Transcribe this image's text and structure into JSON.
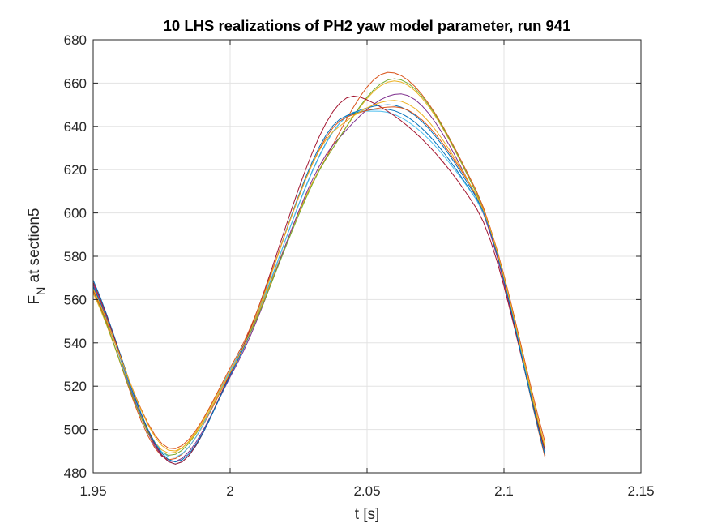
{
  "chart_data": {
    "type": "line",
    "title": "10 LHS realizations of PH2 yaw model parameter, run 941",
    "xlabel": "t [s]",
    "ylabel": {
      "main": "F",
      "subscript": "N",
      "rest": " at section5"
    },
    "xlim": [
      1.95,
      2.15
    ],
    "ylim": [
      480,
      680
    ],
    "xticks": [
      1.95,
      2.0,
      2.05,
      2.1,
      2.15
    ],
    "xtick_labels": [
      "1.95",
      "2",
      "2.05",
      "2.1",
      "2.15"
    ],
    "yticks": [
      480,
      500,
      520,
      540,
      560,
      580,
      600,
      620,
      640,
      660,
      680
    ],
    "ytick_labels": [
      "480",
      "500",
      "520",
      "540",
      "560",
      "580",
      "600",
      "620",
      "640",
      "660",
      "680"
    ],
    "grid": true,
    "x_start": 1.95,
    "x_end": 2.115,
    "series": [
      {
        "color": "#0072BD",
        "points": [
          [
            1.95,
            569
          ],
          [
            1.98,
            484
          ],
          [
            2.002,
            530
          ],
          [
            2.045,
            646
          ],
          [
            2.056,
            648
          ],
          [
            2.09,
            606
          ],
          [
            2.115,
            488
          ]
        ]
      },
      {
        "color": "#D95319",
        "points": [
          [
            1.95,
            565
          ],
          [
            1.978,
            486
          ],
          [
            2.002,
            531
          ],
          [
            2.033,
            621
          ],
          [
            2.058,
            665
          ],
          [
            2.09,
            610
          ],
          [
            2.115,
            487
          ]
        ]
      },
      {
        "color": "#EDB120",
        "points": [
          [
            1.95,
            563
          ],
          [
            1.978,
            489
          ],
          [
            2.002,
            532
          ],
          [
            2.035,
            625
          ],
          [
            2.06,
            661
          ],
          [
            2.09,
            609
          ],
          [
            2.115,
            491
          ]
        ]
      },
      {
        "color": "#7E2F8E",
        "points": [
          [
            1.95,
            567
          ],
          [
            1.979,
            485
          ],
          [
            2.002,
            529
          ],
          [
            2.038,
            632
          ],
          [
            2.062,
            655
          ],
          [
            2.09,
            607
          ],
          [
            2.115,
            489
          ]
        ]
      },
      {
        "color": "#77AC30",
        "points": [
          [
            1.95,
            564
          ],
          [
            1.978,
            488
          ],
          [
            2.002,
            531
          ],
          [
            2.036,
            627
          ],
          [
            2.06,
            662
          ],
          [
            2.09,
            609
          ],
          [
            2.115,
            490
          ]
        ]
      },
      {
        "color": "#4DBEEE",
        "points": [
          [
            1.95,
            566
          ],
          [
            1.979,
            487
          ],
          [
            2.002,
            532
          ],
          [
            2.047,
            647
          ],
          [
            2.054,
            647
          ],
          [
            2.09,
            606
          ],
          [
            2.115,
            489
          ]
        ]
      },
      {
        "color": "#A2142F",
        "points": [
          [
            1.95,
            568
          ],
          [
            1.98,
            484
          ],
          [
            2.002,
            531
          ],
          [
            2.045,
            654
          ],
          [
            2.052,
            651
          ],
          [
            2.09,
            602
          ],
          [
            2.115,
            490
          ]
        ]
      },
      {
        "color": "#0072BD",
        "points": [
          [
            1.95,
            566
          ],
          [
            1.98,
            485
          ],
          [
            2.002,
            530
          ],
          [
            2.041,
            644
          ],
          [
            2.058,
            650
          ],
          [
            2.09,
            607
          ],
          [
            2.115,
            488
          ]
        ]
      },
      {
        "color": "#D95319",
        "points": [
          [
            1.95,
            564
          ],
          [
            1.979,
            491
          ],
          [
            2.002,
            533
          ],
          [
            2.042,
            644
          ],
          [
            2.06,
            649
          ],
          [
            2.09,
            608
          ],
          [
            2.115,
            494
          ]
        ]
      },
      {
        "color": "#EDB120",
        "points": [
          [
            1.95,
            565
          ],
          [
            1.979,
            490
          ],
          [
            2.002,
            531
          ],
          [
            2.038,
            638
          ],
          [
            2.06,
            652
          ],
          [
            2.09,
            608
          ],
          [
            2.115,
            492
          ]
        ]
      }
    ]
  }
}
